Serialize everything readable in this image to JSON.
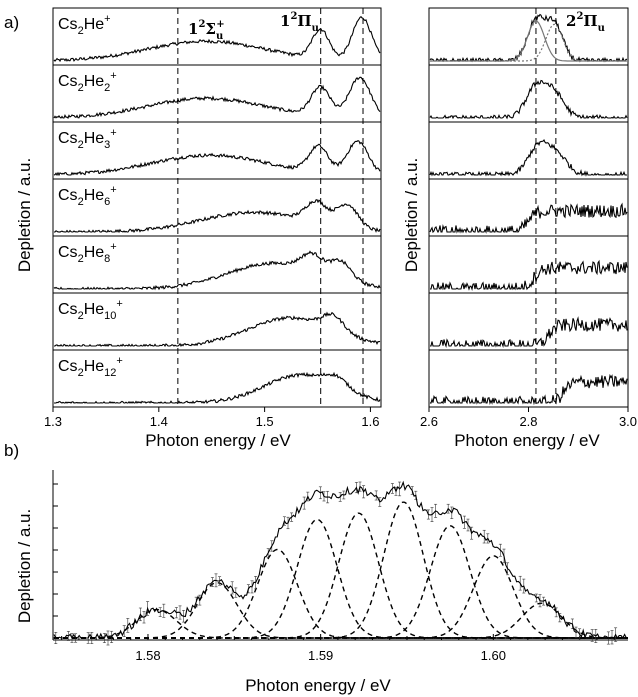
{
  "panel_labels": {
    "a": "a)",
    "b": "b)"
  },
  "axis_labels": {
    "a_left_x": "Photon energy / eV",
    "a_right_x": "Photon energy / eV",
    "a_y": "Depletion / a.u.",
    "b_x": "Photon energy / eV",
    "b_y": "Depletion / a.u."
  },
  "term_labels": [
    {
      "main": "1",
      "sup": "2",
      "sym": "Σ",
      "sub": "u",
      "sup2": "+"
    },
    {
      "main": "1",
      "sup": "2",
      "sym": "Π",
      "sub": "u",
      "sup2": ""
    },
    {
      "main": "2",
      "sup": "2",
      "sym": "Π",
      "sub": "u",
      "sup2": ""
    }
  ],
  "species": [
    {
      "base": "Cs",
      "sub1": "2",
      "mid": "He",
      "sub2": "",
      "charge": "+"
    },
    {
      "base": "Cs",
      "sub1": "2",
      "mid": "He",
      "sub2": "2",
      "charge": "+"
    },
    {
      "base": "Cs",
      "sub1": "2",
      "mid": "He",
      "sub2": "3",
      "charge": "+"
    },
    {
      "base": "Cs",
      "sub1": "2",
      "mid": "He",
      "sub2": "6",
      "charge": "+"
    },
    {
      "base": "Cs",
      "sub1": "2",
      "mid": "He",
      "sub2": "8",
      "charge": "+"
    },
    {
      "base": "Cs",
      "sub1": "2",
      "mid": "He",
      "sub2": "10",
      "charge": "+"
    },
    {
      "base": "Cs",
      "sub1": "2",
      "mid": "He",
      "sub2": "12",
      "charge": "+"
    }
  ],
  "chart_data": [
    {
      "type": "line",
      "panel": "a-left",
      "xlabel": "Photon energy / eV",
      "ylabel": "Depletion / a.u.",
      "xlim": [
        1.3,
        1.61
      ],
      "xticks": [
        "1.3",
        "1.4",
        "1.5",
        "1.6"
      ],
      "xtick_values": [
        1.3,
        1.4,
        1.5,
        1.6
      ],
      "reference_lines_x": [
        1.418,
        1.553,
        1.593
      ],
      "series": [
        {
          "name": "Cs2He+",
          "broad": {
            "center": 1.445,
            "width": 0.055,
            "amp": 0.42
          },
          "peaks": [
            {
              "center": 1.553,
              "width": 0.008,
              "amp": 0.62
            },
            {
              "center": 1.592,
              "width": 0.009,
              "amp": 0.92
            }
          ]
        },
        {
          "name": "Cs2He2+",
          "broad": {
            "center": 1.445,
            "width": 0.055,
            "amp": 0.42
          },
          "peaks": [
            {
              "center": 1.553,
              "width": 0.009,
              "amp": 0.6
            },
            {
              "center": 1.59,
              "width": 0.01,
              "amp": 0.85
            }
          ]
        },
        {
          "name": "Cs2He3+",
          "broad": {
            "center": 1.448,
            "width": 0.055,
            "amp": 0.42
          },
          "peaks": [
            {
              "center": 1.551,
              "width": 0.009,
              "amp": 0.55
            },
            {
              "center": 1.588,
              "width": 0.01,
              "amp": 0.7
            }
          ]
        },
        {
          "name": "Cs2He6+",
          "broad": {
            "center": 1.49,
            "width": 0.05,
            "amp": 0.42
          },
          "peaks": [
            {
              "center": 1.549,
              "width": 0.01,
              "amp": 0.45
            },
            {
              "center": 1.578,
              "width": 0.01,
              "amp": 0.5
            }
          ]
        },
        {
          "name": "Cs2He8+",
          "broad": {
            "center": 1.51,
            "width": 0.045,
            "amp": 0.55
          },
          "peaks": [
            {
              "center": 1.545,
              "width": 0.01,
              "amp": 0.35
            },
            {
              "center": 1.572,
              "width": 0.01,
              "amp": 0.38
            }
          ]
        },
        {
          "name": "Cs2He10+",
          "broad": {
            "center": 1.525,
            "width": 0.04,
            "amp": 0.6
          },
          "peaks": [
            {
              "center": 1.565,
              "width": 0.01,
              "amp": 0.3
            }
          ]
        },
        {
          "name": "Cs2He12+",
          "broad": {
            "center": 1.535,
            "width": 0.035,
            "amp": 0.6
          },
          "peaks": [
            {
              "center": 1.568,
              "width": 0.01,
              "amp": 0.2
            }
          ]
        }
      ]
    },
    {
      "type": "line",
      "panel": "a-right",
      "xlabel": "Photon energy / eV",
      "xlim": [
        2.6,
        3.0
      ],
      "xticks": [
        "2.6",
        "2.8",
        "3.0"
      ],
      "xtick_values": [
        2.6,
        2.8,
        3.0
      ],
      "reference_lines_x": [
        2.815,
        2.855
      ],
      "series": [
        {
          "name": "Cs2He+",
          "peaks": [
            {
              "center": 2.815,
              "width": 0.017,
              "amp": 0.85
            },
            {
              "center": 2.852,
              "width": 0.017,
              "amp": 0.78
            }
          ]
        },
        {
          "name": "Cs2He2+",
          "peaks": [
            {
              "center": 2.815,
              "width": 0.02,
              "amp": 0.65
            },
            {
              "center": 2.852,
              "width": 0.02,
              "amp": 0.5
            }
          ]
        },
        {
          "name": "Cs2He3+",
          "peaks": [
            {
              "center": 2.818,
              "width": 0.02,
              "amp": 0.55
            },
            {
              "center": 2.855,
              "width": 0.022,
              "amp": 0.45
            }
          ]
        },
        {
          "name": "Cs2He6+",
          "plateau": {
            "start": 2.8,
            "end": 3.0,
            "amp": 0.45
          }
        },
        {
          "name": "Cs2He8+",
          "plateau": {
            "start": 2.81,
            "end": 3.0,
            "amp": 0.45
          }
        },
        {
          "name": "Cs2He10+",
          "plateau": {
            "start": 2.84,
            "end": 3.0,
            "amp": 0.45
          }
        },
        {
          "name": "Cs2He12+",
          "plateau": {
            "start": 2.87,
            "end": 3.0,
            "amp": 0.45
          }
        }
      ]
    },
    {
      "type": "line",
      "panel": "b",
      "xlabel": "Photon energy / eV",
      "ylabel": "Depletion / a.u.",
      "xlim": [
        1.5745,
        1.6078
      ],
      "xticks": [
        "1.58",
        "1.59",
        "1.60"
      ],
      "xtick_values": [
        1.58,
        1.59,
        1.6
      ],
      "component_peaks": [
        {
          "center": 1.5805,
          "amp": 0.18
        },
        {
          "center": 1.584,
          "amp": 0.35
        },
        {
          "center": 1.5875,
          "amp": 0.56
        },
        {
          "center": 1.5898,
          "amp": 0.75
        },
        {
          "center": 1.5922,
          "amp": 0.79
        },
        {
          "center": 1.5948,
          "amp": 0.86
        },
        {
          "center": 1.5975,
          "amp": 0.71
        },
        {
          "center": 1.6,
          "amp": 0.52
        },
        {
          "center": 1.6028,
          "amp": 0.22
        }
      ],
      "component_sigma": 0.00115
    }
  ]
}
